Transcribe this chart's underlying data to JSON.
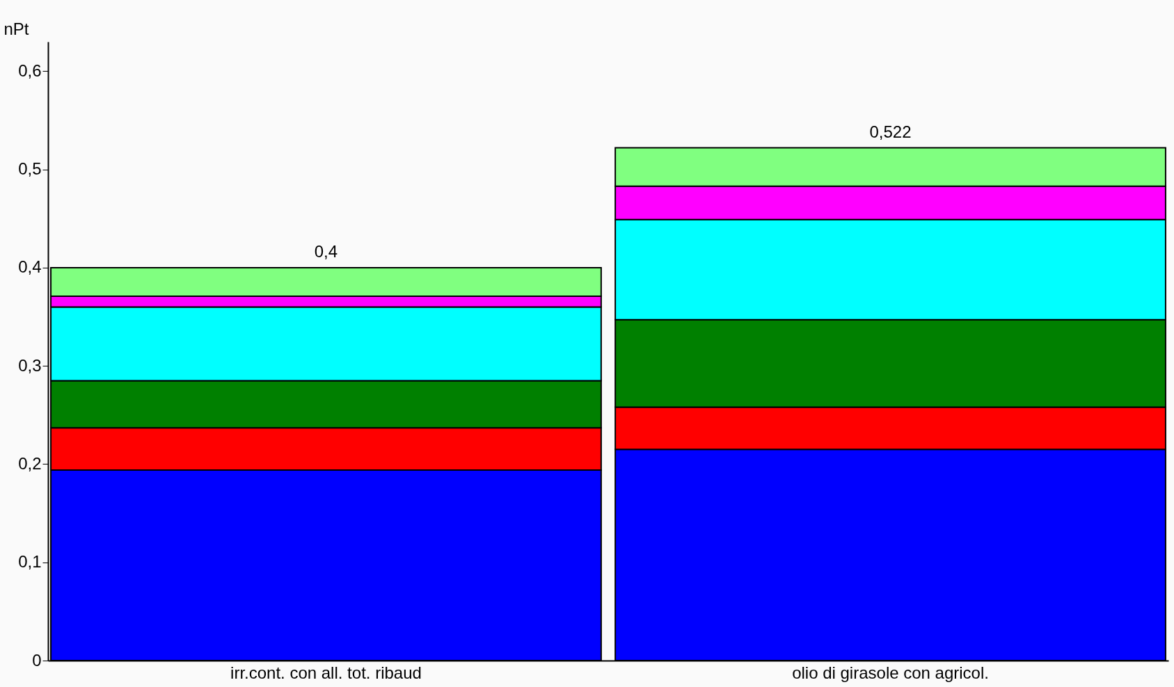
{
  "chart_data": {
    "type": "bar",
    "stacked": true,
    "ylabel": "nPt",
    "categories": [
      "irr.cont. con all. tot. ribaud",
      "olio di girasole con agricol."
    ],
    "series": [
      {
        "color": "#0000ff",
        "values": [
          0.194,
          0.215
        ]
      },
      {
        "color": "#ff0000",
        "values": [
          0.043,
          0.043
        ]
      },
      {
        "color": "#008000",
        "values": [
          0.048,
          0.089
        ]
      },
      {
        "color": "#00ffff",
        "values": [
          0.075,
          0.102
        ]
      },
      {
        "color": "#ff00ff",
        "values": [
          0.011,
          0.034
        ]
      },
      {
        "color": "#80ff80",
        "values": [
          0.029,
          0.039
        ]
      }
    ],
    "totals": [
      "0,4",
      "0,522"
    ],
    "ylim": [
      0,
      0.63
    ],
    "yticks": [
      {
        "value": 0,
        "label": "0"
      },
      {
        "value": 0.1,
        "label": "0,1"
      },
      {
        "value": 0.2,
        "label": "0,2"
      },
      {
        "value": 0.3,
        "label": "0,3"
      },
      {
        "value": 0.4,
        "label": "0,4"
      },
      {
        "value": 0.5,
        "label": "0,5"
      },
      {
        "value": 0.6,
        "label": "0,6"
      }
    ],
    "grid": false,
    "legend": false
  }
}
